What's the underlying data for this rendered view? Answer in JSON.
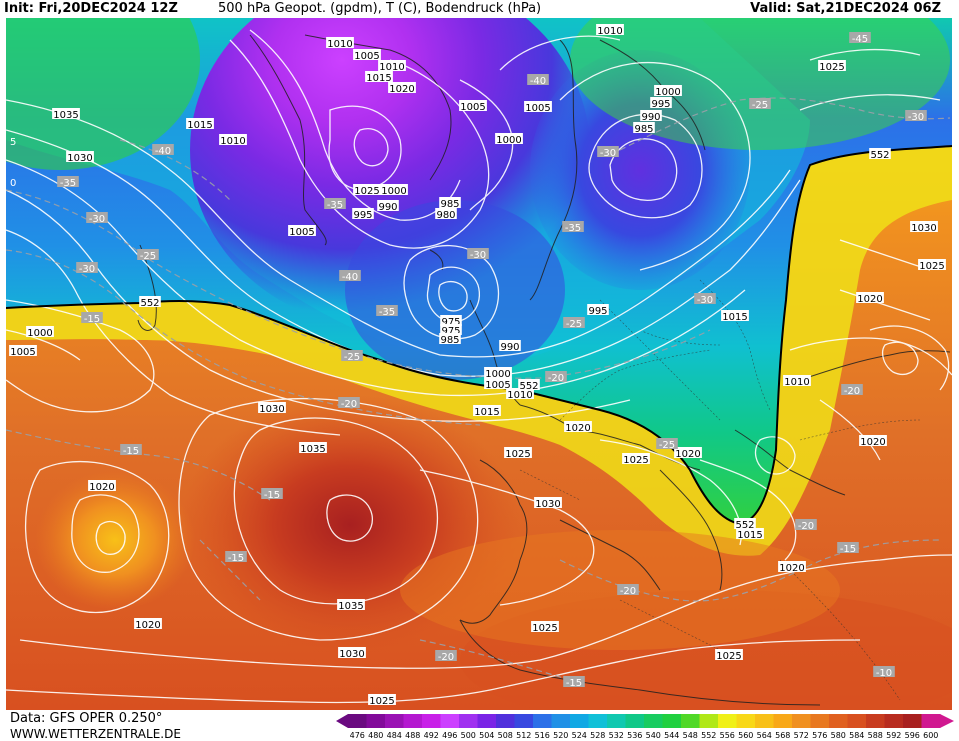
{
  "header": {
    "init": "Init: Fri,20DEC2024 12Z",
    "title": "500 hPa Geopot. (gpdm), T (C), Bodendruck (hPa)",
    "valid": "Valid: Sat,21DEC2024 06Z"
  },
  "footer": {
    "data_source": "Data: GFS OPER 0.250°",
    "website": "WWW.WETTERZENTRALE.DE"
  },
  "legend": {
    "unit": "gpdm",
    "values": [
      476,
      480,
      484,
      488,
      492,
      496,
      500,
      504,
      508,
      512,
      516,
      520,
      524,
      528,
      532,
      536,
      540,
      544,
      548,
      552,
      556,
      560,
      564,
      568,
      572,
      576,
      580,
      584,
      588,
      592,
      596,
      600
    ],
    "colors": [
      "#6a0a80",
      "#820a9a",
      "#9a12b4",
      "#b418d0",
      "#c820e8",
      "#cc40ff",
      "#a030f0",
      "#7a24e6",
      "#5030dc",
      "#3848e0",
      "#2c70e8",
      "#2090e6",
      "#10a8e4",
      "#10c0d8",
      "#10c8b0",
      "#10c888",
      "#18cc60",
      "#20d040",
      "#50d828",
      "#b0e818",
      "#f0f018",
      "#f8d818",
      "#f8c018",
      "#f8a818",
      "#f09020",
      "#e87820",
      "#e06020",
      "#d85020",
      "#c83c20",
      "#b82c20",
      "#a82020",
      "#d01890"
    ]
  },
  "map_labels": {
    "isobars": [
      {
        "text": "1010",
        "gx": 340,
        "gy": 43
      },
      {
        "text": "1005",
        "gx": 367,
        "gy": 55
      },
      {
        "text": "1010",
        "gx": 392,
        "gy": 66
      },
      {
        "text": "1015",
        "gx": 379,
        "gy": 77
      },
      {
        "text": "1020",
        "gx": 402,
        "gy": 88
      },
      {
        "text": "1010",
        "gx": 610,
        "gy": 30
      },
      {
        "text": "1025",
        "gx": 832,
        "gy": 66
      },
      {
        "text": "1035",
        "gx": 66,
        "gy": 114
      },
      {
        "text": "1015",
        "gx": 200,
        "gy": 124
      },
      {
        "text": "1010",
        "gx": 233,
        "gy": 140
      },
      {
        "text": "1030",
        "gx": 80,
        "gy": 157
      },
      {
        "text": "1005",
        "gx": 473,
        "gy": 106
      },
      {
        "text": "1005",
        "gx": 538,
        "gy": 107
      },
      {
        "text": "1000",
        "gx": 509,
        "gy": 139
      },
      {
        "text": "1000",
        "gx": 668,
        "gy": 91
      },
      {
        "text": "995",
        "gx": 661,
        "gy": 103
      },
      {
        "text": "990",
        "gx": 651,
        "gy": 116
      },
      {
        "text": "985",
        "gx": 644,
        "gy": 128
      },
      {
        "text": "1025",
        "gx": 367,
        "gy": 190
      },
      {
        "text": "1000",
        "gx": 394,
        "gy": 190
      },
      {
        "text": "990",
        "gx": 388,
        "gy": 206
      },
      {
        "text": "995",
        "gx": 363,
        "gy": 214
      },
      {
        "text": "985",
        "gx": 450,
        "gy": 203
      },
      {
        "text": "980",
        "gx": 446,
        "gy": 214
      },
      {
        "text": "1005",
        "gx": 302,
        "gy": 231
      },
      {
        "text": "1030",
        "gx": 924,
        "gy": 227
      },
      {
        "text": "1025",
        "gx": 932,
        "gy": 265
      },
      {
        "text": "1020",
        "gx": 870,
        "gy": 298
      },
      {
        "text": "995",
        "gx": 598,
        "gy": 310
      },
      {
        "text": "975",
        "gx": 451,
        "gy": 321
      },
      {
        "text": "975",
        "gx": 451,
        "gy": 330
      },
      {
        "text": "985",
        "gx": 450,
        "gy": 339
      },
      {
        "text": "1015",
        "gx": 735,
        "gy": 316
      },
      {
        "text": "1000",
        "gx": 40,
        "gy": 332
      },
      {
        "text": "1005",
        "gx": 23,
        "gy": 351
      },
      {
        "text": "990",
        "gx": 510,
        "gy": 346
      },
      {
        "text": "1000",
        "gx": 498,
        "gy": 373
      },
      {
        "text": "1005",
        "gx": 498,
        "gy": 384
      },
      {
        "text": "1010",
        "gx": 520,
        "gy": 394
      },
      {
        "text": "1010",
        "gx": 797,
        "gy": 381
      },
      {
        "text": "1030",
        "gx": 272,
        "gy": 408
      },
      {
        "text": "1015",
        "gx": 487,
        "gy": 411
      },
      {
        "text": "1020",
        "gx": 578,
        "gy": 427
      },
      {
        "text": "1020",
        "gx": 873,
        "gy": 441
      },
      {
        "text": "1035",
        "gx": 313,
        "gy": 448
      },
      {
        "text": "1025",
        "gx": 518,
        "gy": 453
      },
      {
        "text": "1025",
        "gx": 636,
        "gy": 459
      },
      {
        "text": "1020",
        "gx": 688,
        "gy": 453
      },
      {
        "text": "1020",
        "gx": 102,
        "gy": 486
      },
      {
        "text": "1030",
        "gx": 548,
        "gy": 503
      },
      {
        "text": "1015",
        "gx": 750,
        "gy": 534
      },
      {
        "text": "1020",
        "gx": 792,
        "gy": 567
      },
      {
        "text": "1035",
        "gx": 351,
        "gy": 605
      },
      {
        "text": "1020",
        "gx": 148,
        "gy": 624
      },
      {
        "text": "1025",
        "gx": 545,
        "gy": 627
      },
      {
        "text": "1030",
        "gx": 352,
        "gy": 653
      },
      {
        "text": "1025",
        "gx": 729,
        "gy": 655
      },
      {
        "text": "1025",
        "gx": 382,
        "gy": 700
      }
    ],
    "temperatures": [
      {
        "text": "-45",
        "gx": 860,
        "gy": 38
      },
      {
        "text": "-40",
        "gx": 538,
        "gy": 80
      },
      {
        "text": "-25",
        "gx": 760,
        "gy": 104
      },
      {
        "text": "-30",
        "gx": 916,
        "gy": 116
      },
      {
        "text": "-40",
        "gx": 163,
        "gy": 150
      },
      {
        "text": "-30",
        "gx": 608,
        "gy": 152
      },
      {
        "text": "-35",
        "gx": 68,
        "gy": 182
      },
      {
        "text": "-35",
        "gx": 335,
        "gy": 204
      },
      {
        "text": "-30",
        "gx": 97,
        "gy": 218
      },
      {
        "text": "-35",
        "gx": 573,
        "gy": 227
      },
      {
        "text": "-30",
        "gx": 478,
        "gy": 254
      },
      {
        "text": "-25",
        "gx": 148,
        "gy": 255
      },
      {
        "text": "-30",
        "gx": 87,
        "gy": 268
      },
      {
        "text": "-40",
        "gx": 350,
        "gy": 276
      },
      {
        "text": "-30",
        "gx": 705,
        "gy": 299
      },
      {
        "text": "-35",
        "gx": 387,
        "gy": 311
      },
      {
        "text": "-25",
        "gx": 574,
        "gy": 323
      },
      {
        "text": "-15",
        "gx": 92,
        "gy": 318
      },
      {
        "text": "-25",
        "gx": 352,
        "gy": 356
      },
      {
        "text": "-20",
        "gx": 556,
        "gy": 377
      },
      {
        "text": "-20",
        "gx": 852,
        "gy": 390
      },
      {
        "text": "-20",
        "gx": 349,
        "gy": 403
      },
      {
        "text": "-15",
        "gx": 131,
        "gy": 450
      },
      {
        "text": "-25",
        "gx": 667,
        "gy": 444
      },
      {
        "text": "-15",
        "gx": 272,
        "gy": 494
      },
      {
        "text": "-20",
        "gx": 806,
        "gy": 525
      },
      {
        "text": "-15",
        "gx": 236,
        "gy": 557
      },
      {
        "text": "-15",
        "gx": 848,
        "gy": 548
      },
      {
        "text": "-20",
        "gx": 628,
        "gy": 590
      },
      {
        "text": "-20",
        "gx": 446,
        "gy": 656
      },
      {
        "text": "-15",
        "gx": 574,
        "gy": 682
      },
      {
        "text": "-10",
        "gx": 884,
        "gy": 672
      }
    ],
    "contour_552": [
      {
        "text": "552",
        "gx": 150,
        "gy": 302
      },
      {
        "text": "552",
        "gx": 880,
        "gy": 154
      },
      {
        "text": "552",
        "gx": 529,
        "gy": 385
      },
      {
        "text": "552",
        "gx": 745,
        "gy": 524
      }
    ],
    "edge_ticks": [
      {
        "text": "5",
        "gx": 10,
        "gy": 141
      },
      {
        "text": "0",
        "gx": 10,
        "gy": 182
      }
    ]
  }
}
